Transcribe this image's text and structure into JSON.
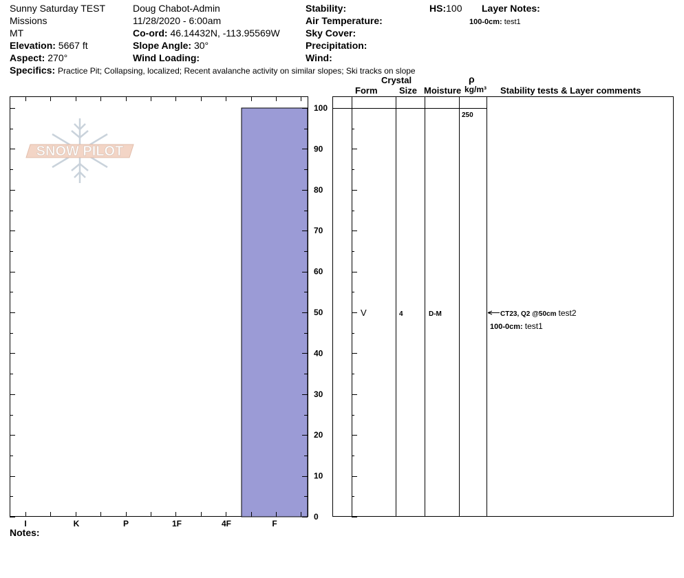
{
  "header": {
    "pit_name": "Sunny Saturday TEST",
    "observer": "Doug Chabot-Admin",
    "region": "Missions",
    "state": "MT",
    "datetime": "11/28/2020 - 6:00am",
    "coord_label": "Co-ord:",
    "coord_value": "46.14432N, -113.95569W",
    "elevation_label": "Elevation:",
    "elevation_value": "5667 ft",
    "slope_label": "Slope Angle:",
    "slope_value": "30°",
    "aspect_label": "Aspect:",
    "aspect_value": "270°",
    "wind_loading_label": "Wind Loading:",
    "stability_label": "Stability:",
    "air_temp_label": "Air Temperature:",
    "sky_cover_label": "Sky Cover:",
    "precip_label": "Precipitation:",
    "wind_label": "Wind:",
    "hs_label": "HS:",
    "hs_value": "100",
    "layer_notes_label": "Layer Notes:",
    "layer_note_range": "100-0cm:",
    "layer_note_text": "test1",
    "specifics_label": "Specifics:",
    "specifics_value": "Practice Pit; Collapsing, localized; Recent avalanche activity on similar slopes; Ski tracks on slope"
  },
  "logo": {
    "text": "SNOW PILOT"
  },
  "columns": {
    "form": "Form",
    "crystal": "Crystal",
    "size": "Size",
    "moisture": "Moisture",
    "rho": "ρ",
    "density_unit": "kg/m³",
    "comments": "Stability tests & Layer comments"
  },
  "hardness_axis": [
    "I",
    "K",
    "P",
    "1F",
    "4F",
    "F"
  ],
  "depth_ticks": [
    "100",
    "90",
    "80",
    "70",
    "60",
    "50",
    "40",
    "30",
    "20",
    "10",
    "0"
  ],
  "layer": {
    "form_symbol": "V",
    "size": "4",
    "moisture": "D-M",
    "density": "250"
  },
  "stability_test": {
    "result": "CT23, Q2 @50cm",
    "comment": "test2"
  },
  "layer_comment": {
    "range": "100-0cm:",
    "text": "test1"
  },
  "notes_label": "Notes:",
  "chart_data": {
    "type": "bar",
    "xlabel": "",
    "ylabel": "",
    "categories": [
      "I",
      "K",
      "P",
      "1F",
      "4F",
      "F"
    ],
    "ylim": [
      0,
      100
    ],
    "layers": [
      {
        "top_cm": 100,
        "bottom_cm": 0,
        "hardness": "F"
      }
    ],
    "colors": {
      "layer_fill": "#9b9bd6"
    }
  }
}
